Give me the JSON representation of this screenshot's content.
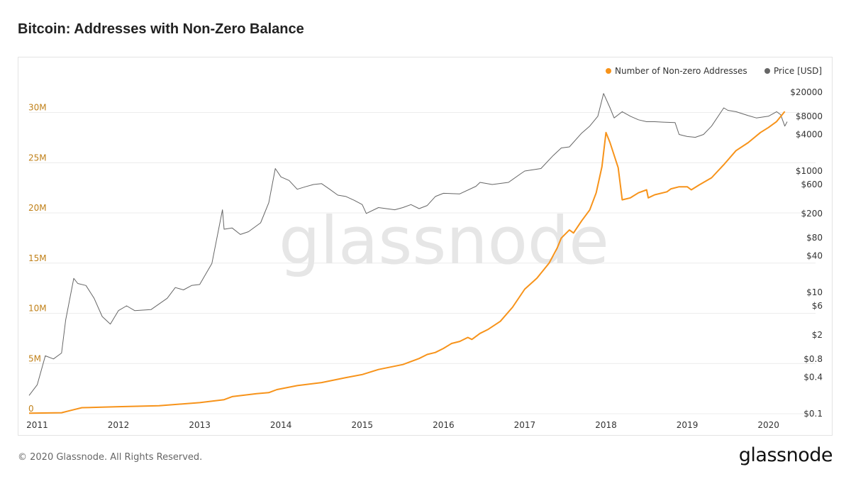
{
  "page": {
    "title": "Bitcoin: Addresses with Non-Zero Balance",
    "copyright": "© 2020 Glassnode. All Rights Reserved.",
    "logo_text": "glassnode",
    "watermark_text": "glassnode"
  },
  "colors": {
    "addresses": "#f7931a",
    "price": "#666666",
    "left_axis_text": "#c08018",
    "right_axis_text": "#333333",
    "grid": "#ececec",
    "watermark": "#e6e6e6"
  },
  "chart_data": {
    "type": "line",
    "title": "Bitcoin: Addresses with Non-Zero Balance",
    "legend_position": "top-right",
    "grid": true,
    "x_ticks": [
      "2011",
      "2012",
      "2013",
      "2014",
      "2015",
      "2016",
      "2017",
      "2018",
      "2019",
      "2020"
    ],
    "xlim": [
      2010.9,
      2020.23
    ],
    "y_left": {
      "ticks": [
        0,
        5,
        10,
        15,
        20,
        25,
        30
      ],
      "tick_labels": [
        "0",
        "5M",
        "10M",
        "15M",
        "20M",
        "25M",
        "30M"
      ],
      "unit": "millions",
      "ylim": [
        0,
        33.5
      ]
    },
    "y_right": {
      "scale": "log",
      "tick_values": [
        0.1,
        0.4,
        0.8,
        2,
        6,
        10,
        40,
        80,
        200,
        600,
        1000,
        4000,
        8000,
        20000
      ],
      "tick_labels": [
        "$0.1",
        "$0.4",
        "$0.8",
        "$2",
        "$6",
        "$10",
        "$40",
        "$80",
        "$200",
        "$600",
        "$1000",
        "$4000",
        "$8000",
        "$20000"
      ],
      "ylim": [
        0.1,
        35000
      ]
    },
    "series": [
      {
        "name": "Number of Non-zero Addresses",
        "axis": "left",
        "points": [
          [
            2010.9,
            0.05
          ],
          [
            2011.3,
            0.1
          ],
          [
            2011.45,
            0.4
          ],
          [
            2011.55,
            0.6
          ],
          [
            2011.8,
            0.65
          ],
          [
            2012.0,
            0.7
          ],
          [
            2012.5,
            0.8
          ],
          [
            2013.0,
            1.1
          ],
          [
            2013.3,
            1.4
          ],
          [
            2013.4,
            1.7
          ],
          [
            2013.7,
            2.0
          ],
          [
            2013.85,
            2.1
          ],
          [
            2013.95,
            2.4
          ],
          [
            2014.2,
            2.8
          ],
          [
            2014.5,
            3.1
          ],
          [
            2014.8,
            3.6
          ],
          [
            2015.0,
            3.9
          ],
          [
            2015.2,
            4.4
          ],
          [
            2015.5,
            4.9
          ],
          [
            2015.7,
            5.5
          ],
          [
            2015.8,
            5.9
          ],
          [
            2015.9,
            6.1
          ],
          [
            2016.0,
            6.5
          ],
          [
            2016.1,
            7.0
          ],
          [
            2016.2,
            7.2
          ],
          [
            2016.3,
            7.6
          ],
          [
            2016.35,
            7.4
          ],
          [
            2016.45,
            8.0
          ],
          [
            2016.55,
            8.4
          ],
          [
            2016.7,
            9.2
          ],
          [
            2016.85,
            10.6
          ],
          [
            2017.0,
            12.4
          ],
          [
            2017.15,
            13.5
          ],
          [
            2017.3,
            15.0
          ],
          [
            2017.4,
            16.5
          ],
          [
            2017.45,
            17.5
          ],
          [
            2017.55,
            18.3
          ],
          [
            2017.6,
            18.0
          ],
          [
            2017.7,
            19.2
          ],
          [
            2017.8,
            20.3
          ],
          [
            2017.88,
            22.0
          ],
          [
            2017.95,
            24.6
          ],
          [
            2018.0,
            28.0
          ],
          [
            2018.05,
            27.0
          ],
          [
            2018.15,
            24.5
          ],
          [
            2018.2,
            21.3
          ],
          [
            2018.3,
            21.5
          ],
          [
            2018.4,
            22.0
          ],
          [
            2018.5,
            22.3
          ],
          [
            2018.52,
            21.5
          ],
          [
            2018.6,
            21.8
          ],
          [
            2018.75,
            22.1
          ],
          [
            2018.8,
            22.4
          ],
          [
            2018.9,
            22.6
          ],
          [
            2019.0,
            22.6
          ],
          [
            2019.05,
            22.3
          ],
          [
            2019.15,
            22.8
          ],
          [
            2019.3,
            23.5
          ],
          [
            2019.45,
            24.8
          ],
          [
            2019.6,
            26.2
          ],
          [
            2019.75,
            27.0
          ],
          [
            2019.9,
            28.0
          ],
          [
            2020.0,
            28.5
          ],
          [
            2020.1,
            29.1
          ],
          [
            2020.2,
            30.1
          ]
        ]
      },
      {
        "name": "Price [USD]",
        "axis": "right",
        "points": [
          [
            2010.9,
            0.2
          ],
          [
            2011.0,
            0.3
          ],
          [
            2011.1,
            0.9
          ],
          [
            2011.2,
            0.8
          ],
          [
            2011.3,
            1.0
          ],
          [
            2011.35,
            3.5
          ],
          [
            2011.45,
            17
          ],
          [
            2011.5,
            14
          ],
          [
            2011.6,
            13
          ],
          [
            2011.7,
            8
          ],
          [
            2011.8,
            4
          ],
          [
            2011.9,
            3
          ],
          [
            2012.0,
            5
          ],
          [
            2012.1,
            6
          ],
          [
            2012.2,
            5
          ],
          [
            2012.4,
            5.2
          ],
          [
            2012.6,
            8
          ],
          [
            2012.7,
            12
          ],
          [
            2012.8,
            11
          ],
          [
            2012.9,
            13
          ],
          [
            2013.0,
            13.5
          ],
          [
            2013.15,
            30
          ],
          [
            2013.28,
            230
          ],
          [
            2013.3,
            110
          ],
          [
            2013.4,
            115
          ],
          [
            2013.5,
            90
          ],
          [
            2013.6,
            100
          ],
          [
            2013.75,
            140
          ],
          [
            2013.85,
            300
          ],
          [
            2013.93,
            1100
          ],
          [
            2014.0,
            800
          ],
          [
            2014.1,
            700
          ],
          [
            2014.2,
            500
          ],
          [
            2014.3,
            550
          ],
          [
            2014.4,
            600
          ],
          [
            2014.5,
            620
          ],
          [
            2014.6,
            500
          ],
          [
            2014.7,
            400
          ],
          [
            2014.8,
            380
          ],
          [
            2014.9,
            330
          ],
          [
            2015.0,
            280
          ],
          [
            2015.05,
            200
          ],
          [
            2015.2,
            250
          ],
          [
            2015.4,
            230
          ],
          [
            2015.5,
            250
          ],
          [
            2015.6,
            280
          ],
          [
            2015.7,
            240
          ],
          [
            2015.8,
            270
          ],
          [
            2015.9,
            380
          ],
          [
            2016.0,
            430
          ],
          [
            2016.2,
            420
          ],
          [
            2016.4,
            560
          ],
          [
            2016.45,
            650
          ],
          [
            2016.6,
            600
          ],
          [
            2016.8,
            650
          ],
          [
            2016.95,
            900
          ],
          [
            2017.0,
            1000
          ],
          [
            2017.2,
            1100
          ],
          [
            2017.35,
            1800
          ],
          [
            2017.45,
            2400
          ],
          [
            2017.55,
            2500
          ],
          [
            2017.7,
            4200
          ],
          [
            2017.8,
            5500
          ],
          [
            2017.9,
            8000
          ],
          [
            2017.97,
            19000
          ],
          [
            2018.05,
            11000
          ],
          [
            2018.1,
            7500
          ],
          [
            2018.2,
            9500
          ],
          [
            2018.3,
            8000
          ],
          [
            2018.4,
            7000
          ],
          [
            2018.5,
            6500
          ],
          [
            2018.6,
            6500
          ],
          [
            2018.7,
            6400
          ],
          [
            2018.85,
            6300
          ],
          [
            2018.9,
            4000
          ],
          [
            2019.0,
            3700
          ],
          [
            2019.1,
            3600
          ],
          [
            2019.2,
            4000
          ],
          [
            2019.3,
            5500
          ],
          [
            2019.45,
            11000
          ],
          [
            2019.5,
            10000
          ],
          [
            2019.6,
            9500
          ],
          [
            2019.75,
            8200
          ],
          [
            2019.85,
            7500
          ],
          [
            2020.0,
            8000
          ],
          [
            2020.1,
            9500
          ],
          [
            2020.15,
            8500
          ],
          [
            2020.2,
            5500
          ],
          [
            2020.23,
            6500
          ]
        ]
      }
    ]
  }
}
